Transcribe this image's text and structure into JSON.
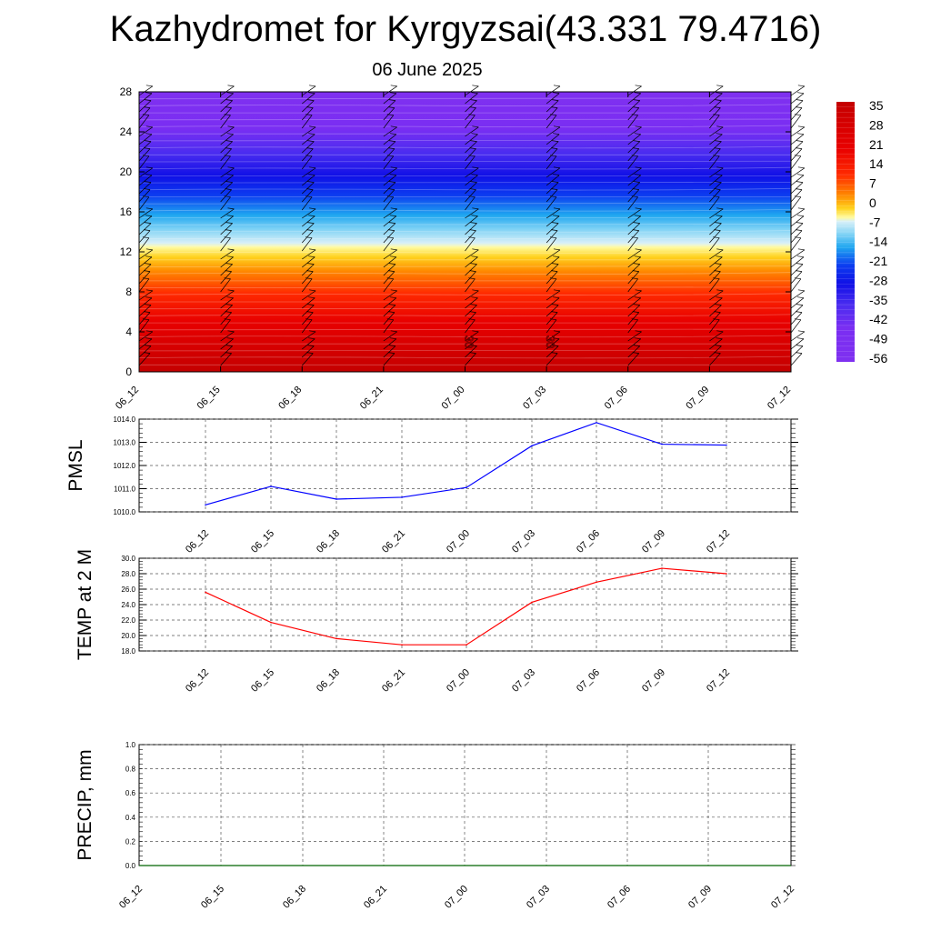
{
  "header": {
    "title": "Kazhydromet for Kyrgyzsai(43.331 79.4716)",
    "subtitle": "06 June 2025"
  },
  "colorbar": {
    "labels": [
      "35",
      "28",
      "21",
      "14",
      "7",
      "0",
      "-7",
      "-14",
      "-21",
      "-28",
      "-35",
      "-42",
      "-49",
      "-56"
    ]
  },
  "chart_data": [
    {
      "type": "heatmap",
      "name": "temperature-cross-section",
      "x_ticks": [
        "06_12",
        "06_15",
        "06_18",
        "06_21",
        "07_00",
        "07_03",
        "07_06",
        "07_09",
        "07_12"
      ],
      "y_ticks": [
        "0",
        "4",
        "8",
        "12",
        "16",
        "20",
        "24",
        "28"
      ],
      "ylim": [
        0,
        28
      ],
      "color_range": [
        -56,
        35
      ],
      "contour_labels": [
        "30",
        "30"
      ]
    },
    {
      "type": "line",
      "ylabel": "PMSL",
      "x": [
        "06_12",
        "06_15",
        "06_18",
        "06_21",
        "07_00",
        "07_03",
        "07_06",
        "07_09",
        "07_12"
      ],
      "values": [
        1010.3,
        1011.1,
        1010.55,
        1010.63,
        1011.05,
        1012.85,
        1013.85,
        1012.92,
        1012.88
      ],
      "ylim": [
        1010.0,
        1014.0
      ],
      "y_ticks": [
        "1010.0",
        "1011.0",
        "1012.0",
        "1013.0",
        "1014.0"
      ],
      "color": "#0000ff"
    },
    {
      "type": "line",
      "ylabel": "TEMP at 2 M",
      "x": [
        "06_12",
        "06_15",
        "06_18",
        "06_21",
        "07_00",
        "07_03",
        "07_06",
        "07_09",
        "07_12"
      ],
      "values": [
        25.6,
        21.7,
        19.6,
        18.8,
        18.8,
        24.3,
        26.9,
        28.7,
        28.0
      ],
      "ylim": [
        18.0,
        30.0
      ],
      "y_ticks": [
        "18.0",
        "20.0",
        "22.0",
        "24.0",
        "26.0",
        "28.0",
        "30.0"
      ],
      "color": "#ff0000"
    },
    {
      "type": "line",
      "ylabel": "PRECIP, mm",
      "x": [
        "06_12",
        "06_15",
        "06_18",
        "06_21",
        "07_00",
        "07_03",
        "07_06",
        "07_09",
        "07_12"
      ],
      "values": [
        0,
        0,
        0,
        0,
        0,
        0,
        0,
        0,
        0
      ],
      "ylim": [
        0.0,
        1.0
      ],
      "y_ticks": [
        "0.0",
        "0.2",
        "0.4",
        "0.6",
        "0.8",
        "1.0"
      ],
      "color": "#006400"
    }
  ]
}
